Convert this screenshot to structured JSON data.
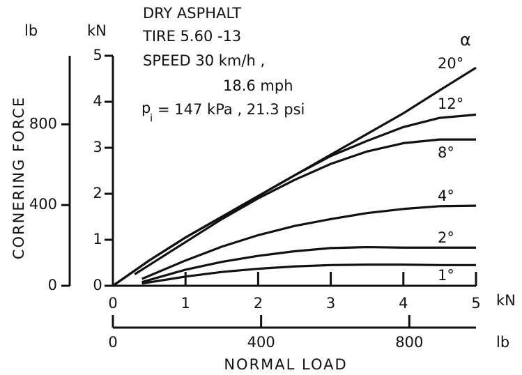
{
  "chart_data": {
    "type": "line",
    "annotations": [
      "DRY ASPHALT",
      "TIRE 5.60 -13",
      "SPEED 30 km/h ,",
      "18.6 mph",
      "p",
      "i",
      "= 147 kPa , 21.3 psi"
    ],
    "series_label_title": "α",
    "y_label": "CORNERING FORCE",
    "x_label": "NORMAL LOAD",
    "y_unit": "kN",
    "y2_unit": "lb",
    "x_unit": "kN",
    "x2_unit": "lb",
    "xlim": [
      0,
      5
    ],
    "xticks": [
      0,
      1,
      2,
      3,
      4,
      5
    ],
    "x2lim": [
      0,
      980
    ],
    "x2ticks": [
      0,
      400,
      800
    ],
    "ylim": [
      0,
      5
    ],
    "yticks": [
      0,
      1,
      2,
      3,
      4,
      5
    ],
    "y2lim": [
      0,
      1140
    ],
    "y2ticks": [
      0,
      400,
      800
    ],
    "series": [
      {
        "name": "20°",
        "color": "#111111",
        "x": [
          0,
          0.5,
          1,
          1.5,
          2,
          2.5,
          3,
          3.5,
          4,
          4.5,
          5
        ],
        "values": [
          0,
          0.55,
          1.05,
          1.5,
          1.95,
          2.4,
          2.85,
          3.3,
          3.75,
          4.25,
          4.74
        ]
      },
      {
        "name": "12°",
        "color": "#111111",
        "x": [
          0,
          0.5,
          1,
          1.5,
          2,
          2.5,
          3,
          3.5,
          4,
          4.5,
          5
        ],
        "values": [
          0,
          0.55,
          1.05,
          1.5,
          1.95,
          2.4,
          2.82,
          3.15,
          3.45,
          3.65,
          3.72
        ]
      },
      {
        "name": "8°",
        "color": "#111111",
        "x": [
          0.3,
          0.5,
          1,
          1.5,
          2,
          2.5,
          3,
          3.5,
          4,
          4.5,
          5
        ],
        "values": [
          0.25,
          0.45,
          0.95,
          1.45,
          1.9,
          2.3,
          2.65,
          2.92,
          3.1,
          3.18,
          3.18
        ]
      },
      {
        "name": "4°",
        "color": "#111111",
        "x": [
          0.4,
          1,
          1.5,
          2,
          2.5,
          3,
          3.5,
          4,
          4.5,
          5
        ],
        "values": [
          0.15,
          0.55,
          0.85,
          1.1,
          1.3,
          1.45,
          1.58,
          1.67,
          1.73,
          1.74
        ]
      },
      {
        "name": "2°",
        "color": "#111111",
        "x": [
          0.4,
          1,
          1.5,
          2,
          2.5,
          3,
          3.5,
          4,
          4.5,
          5
        ],
        "values": [
          0.08,
          0.35,
          0.52,
          0.65,
          0.75,
          0.82,
          0.84,
          0.83,
          0.83,
          0.83
        ]
      },
      {
        "name": "1°",
        "color": "#111111",
        "x": [
          0.4,
          1,
          1.5,
          2,
          2.5,
          3,
          3.5,
          4,
          4.5,
          5
        ],
        "values": [
          0.05,
          0.2,
          0.3,
          0.37,
          0.42,
          0.45,
          0.46,
          0.46,
          0.45,
          0.45
        ]
      }
    ]
  }
}
